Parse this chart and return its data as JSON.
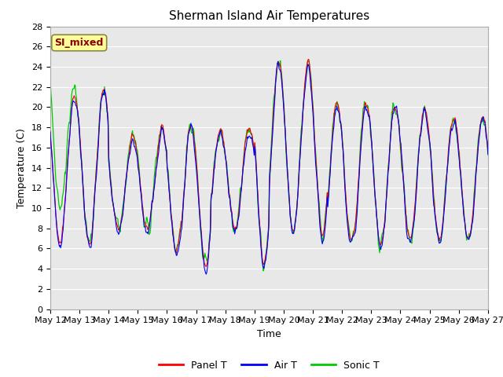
{
  "title": "Sherman Island Air Temperatures",
  "xlabel": "Time",
  "ylabel": "Temperature (C)",
  "annotation": "SI_mixed",
  "annotation_color": "#8B0000",
  "annotation_bg": "#FFFF99",
  "ylim": [
    0,
    28
  ],
  "yticks": [
    0,
    2,
    4,
    6,
    8,
    10,
    12,
    14,
    16,
    18,
    20,
    22,
    24,
    26,
    28
  ],
  "x_labels": [
    "May 12",
    "May 13",
    "May 14",
    "May 15",
    "May 16",
    "May 17",
    "May 18",
    "May 19",
    "May 20",
    "May 21",
    "May 22",
    "May 23",
    "May 24",
    "May 25",
    "May 26",
    "May 27"
  ],
  "panel_color": "#FF0000",
  "air_color": "#0000FF",
  "sonic_color": "#00CC00",
  "plot_bg": "#E8E8E8",
  "legend_labels": [
    "Panel T",
    "Air T",
    "Sonic T"
  ],
  "title_fontsize": 11,
  "axis_fontsize": 9,
  "tick_fontsize": 8,
  "annot_fontsize": 9,
  "n_days": 15,
  "n_per_day": 48
}
